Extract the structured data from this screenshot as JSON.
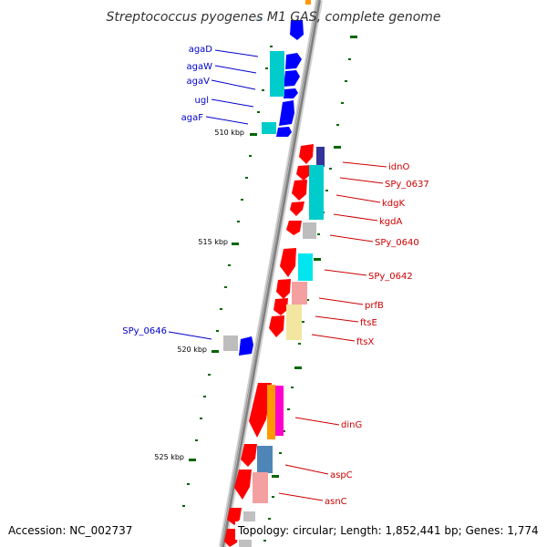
{
  "title": "Streptococcus pyogenes M1 GAS, complete genome",
  "footer": {
    "accession": "Accession: NC_002737",
    "topology": "Topology: circular; Length: 1,852,441 bp; Genes: 1,774"
  },
  "colors": {
    "forward_label": "#0000cc",
    "reverse_label": "#cc0000",
    "tick": "#006600",
    "backbone": "#808080"
  },
  "scale_labels": [
    "510 kbp",
    "515 kbp",
    "520 kbp",
    "525 kbp"
  ],
  "genes": {
    "forward": [
      "agaD",
      "agaW",
      "agaV",
      "ugl",
      "agaF",
      "SPy_0646"
    ],
    "reverse": [
      "idnO",
      "SPy_0637",
      "kdgK",
      "kgdA",
      "SPy_0640",
      "SPy_0642",
      "prfB",
      "ftsE",
      "ftsX",
      "dinG",
      "aspC",
      "asnC"
    ]
  }
}
